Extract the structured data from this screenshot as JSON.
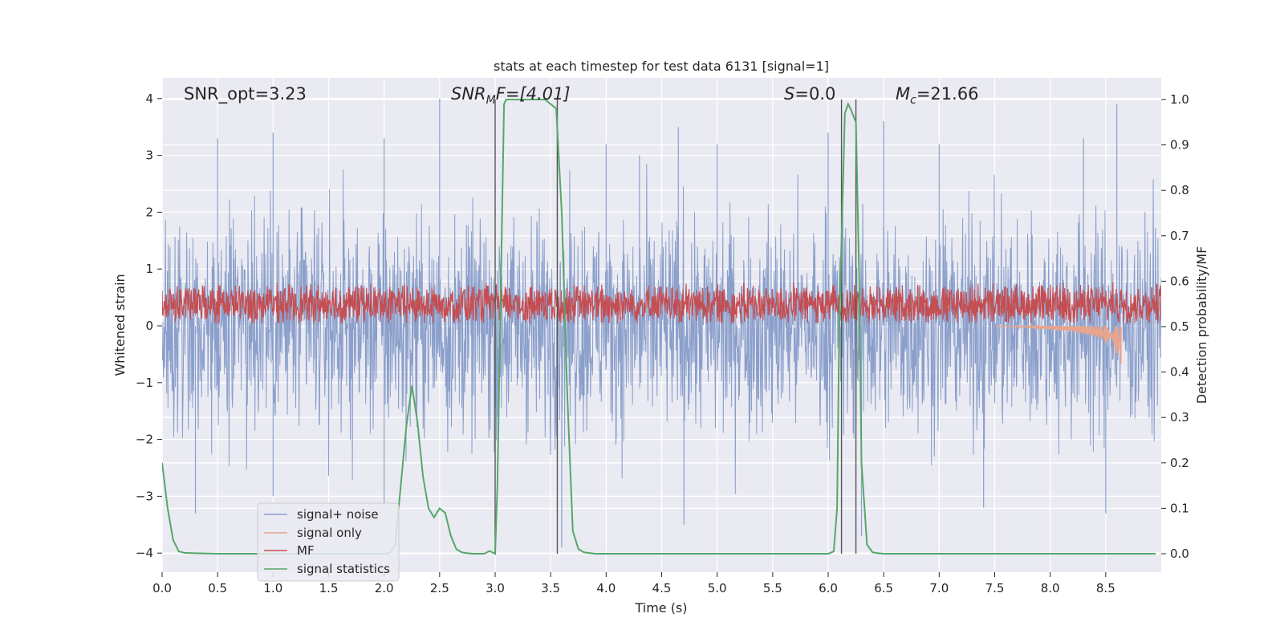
{
  "chart_data": {
    "type": "line",
    "title": "stats at each timestep for test data 6131 [signal=1]",
    "xlabel": "Time (s)",
    "ylabel_left": "Whitened strain",
    "ylabel_right": "Detection probability/MF",
    "xlim": [
      0.0,
      9.0
    ],
    "ylim_left": [
      -4.4,
      4.4
    ],
    "ylim_right": [
      -0.05,
      1.04
    ],
    "xticks": [
      "0.0",
      "0.5",
      "1.0",
      "1.5",
      "2.0",
      "2.5",
      "3.0",
      "3.5",
      "4.0",
      "4.5",
      "5.0",
      "5.5",
      "6.0",
      "6.5",
      "7.0",
      "7.5",
      "8.0",
      "8.5"
    ],
    "xtick_values": [
      0.0,
      0.5,
      1.0,
      1.5,
      2.0,
      2.5,
      3.0,
      3.5,
      4.0,
      4.5,
      5.0,
      5.5,
      6.0,
      6.5,
      7.0,
      7.5,
      8.0,
      8.5
    ],
    "yticks_left": [
      "4",
      "3",
      "2",
      "1",
      "0",
      "−1",
      "−2",
      "−3",
      "−4"
    ],
    "ytick_values_left": [
      4,
      3,
      2,
      1,
      0,
      -1,
      -2,
      -3,
      -4
    ],
    "yticks_right": [
      "1.0",
      "0.9",
      "0.8",
      "0.7",
      "0.6",
      "0.5",
      "0.4",
      "0.3",
      "0.2",
      "0.1",
      "0.0"
    ],
    "ytick_values_right": [
      1.0,
      0.9,
      0.8,
      0.7,
      0.6,
      0.5,
      0.4,
      0.3,
      0.2,
      0.1,
      0.0
    ],
    "annotations": {
      "snr_opt": "SNR_opt=3.23",
      "snr_mf_main": "SNR",
      "snr_mf_sub": "M",
      "snr_mf_rest": "F=[4.01]",
      "s_label": "S",
      "s_rest": "=0.0",
      "mc_main": "M",
      "mc_sub": "c",
      "mc_rest": "=21.66"
    },
    "vertical_lines_s": [
      3.0,
      3.56,
      6.12,
      6.25
    ],
    "legend": {
      "location": "lower-left",
      "entries": [
        "signal+ noise",
        "signal only",
        "MF",
        "signal statistics"
      ]
    },
    "series": [
      {
        "name": "signal+ noise",
        "axis": "left",
        "description": "whitened strain noise, approx. range -3.6 to 4.0",
        "color": "#8a9fcb",
        "peaks_up": [
          [
            0.5,
            3.3
          ],
          [
            1.0,
            3.4
          ],
          [
            2.0,
            3.3
          ],
          [
            2.5,
            4.0
          ],
          [
            3.56,
            3.9
          ],
          [
            4.0,
            3.2
          ],
          [
            4.3,
            3.0
          ],
          [
            4.65,
            3.5
          ],
          [
            5.0,
            3.2
          ],
          [
            6.0,
            3.4
          ],
          [
            6.5,
            3.6
          ],
          [
            7.0,
            3.2
          ],
          [
            8.3,
            3.3
          ],
          [
            8.6,
            3.9
          ]
        ],
        "peaks_down": [
          [
            0.3,
            -3.3
          ],
          [
            1.0,
            -3.0
          ],
          [
            2.0,
            -3.2
          ],
          [
            3.6,
            -3.9
          ],
          [
            4.7,
            -3.5
          ],
          [
            6.3,
            -3.7
          ],
          [
            7.4,
            -3.2
          ],
          [
            8.5,
            -3.3
          ]
        ]
      },
      {
        "name": "signal only",
        "axis": "left",
        "color": "#e8a58d",
        "description": "chirp visible near merger",
        "x": [
          7.5,
          7.8,
          8.0,
          8.2,
          8.4,
          8.55,
          8.62,
          8.64
        ],
        "envelope": [
          0.01,
          0.03,
          0.06,
          0.1,
          0.18,
          0.35,
          0.55,
          0.7
        ]
      },
      {
        "name": "MF",
        "axis": "left",
        "color": "#c44e52",
        "description": "matched filter output, range approx. 0.05 to 0.95"
      },
      {
        "name": "signal statistics",
        "axis": "right",
        "color": "#55a868",
        "x": [
          0.0,
          0.05,
          0.1,
          0.15,
          0.2,
          0.3,
          0.5,
          1.0,
          1.5,
          2.0,
          2.05,
          2.1,
          2.15,
          2.2,
          2.25,
          2.3,
          2.35,
          2.4,
          2.45,
          2.5,
          2.55,
          2.6,
          2.65,
          2.7,
          2.75,
          2.8,
          2.9,
          2.95,
          3.0,
          3.02,
          3.05,
          3.08,
          3.1,
          3.15,
          3.2,
          3.3,
          3.4,
          3.45,
          3.5,
          3.55,
          3.6,
          3.65,
          3.7,
          3.75,
          3.8,
          3.9,
          4.0,
          5.0,
          5.5,
          6.0,
          6.05,
          6.08,
          6.1,
          6.15,
          6.18,
          6.2,
          6.25,
          6.28,
          6.3,
          6.35,
          6.4,
          6.45,
          6.5,
          7.0,
          8.0,
          8.95
        ],
        "values": [
          0.2,
          0.1,
          0.03,
          0.005,
          0.002,
          0.001,
          0.0,
          0.0,
          0.0,
          0.0,
          0.002,
          0.02,
          0.15,
          0.28,
          0.37,
          0.29,
          0.17,
          0.1,
          0.08,
          0.1,
          0.09,
          0.04,
          0.01,
          0.003,
          0.001,
          0.0,
          0.0,
          0.006,
          0.0,
          0.15,
          0.57,
          0.99,
          1.0,
          1.0,
          1.0,
          1.0,
          1.0,
          1.0,
          0.99,
          0.98,
          0.75,
          0.35,
          0.05,
          0.01,
          0.003,
          0.0,
          0.0,
          0.0,
          0.0,
          0.0,
          0.005,
          0.1,
          0.5,
          0.97,
          0.99,
          0.98,
          0.95,
          0.6,
          0.2,
          0.02,
          0.003,
          0.001,
          0.0,
          0.0,
          0.0,
          0.0
        ]
      }
    ]
  }
}
